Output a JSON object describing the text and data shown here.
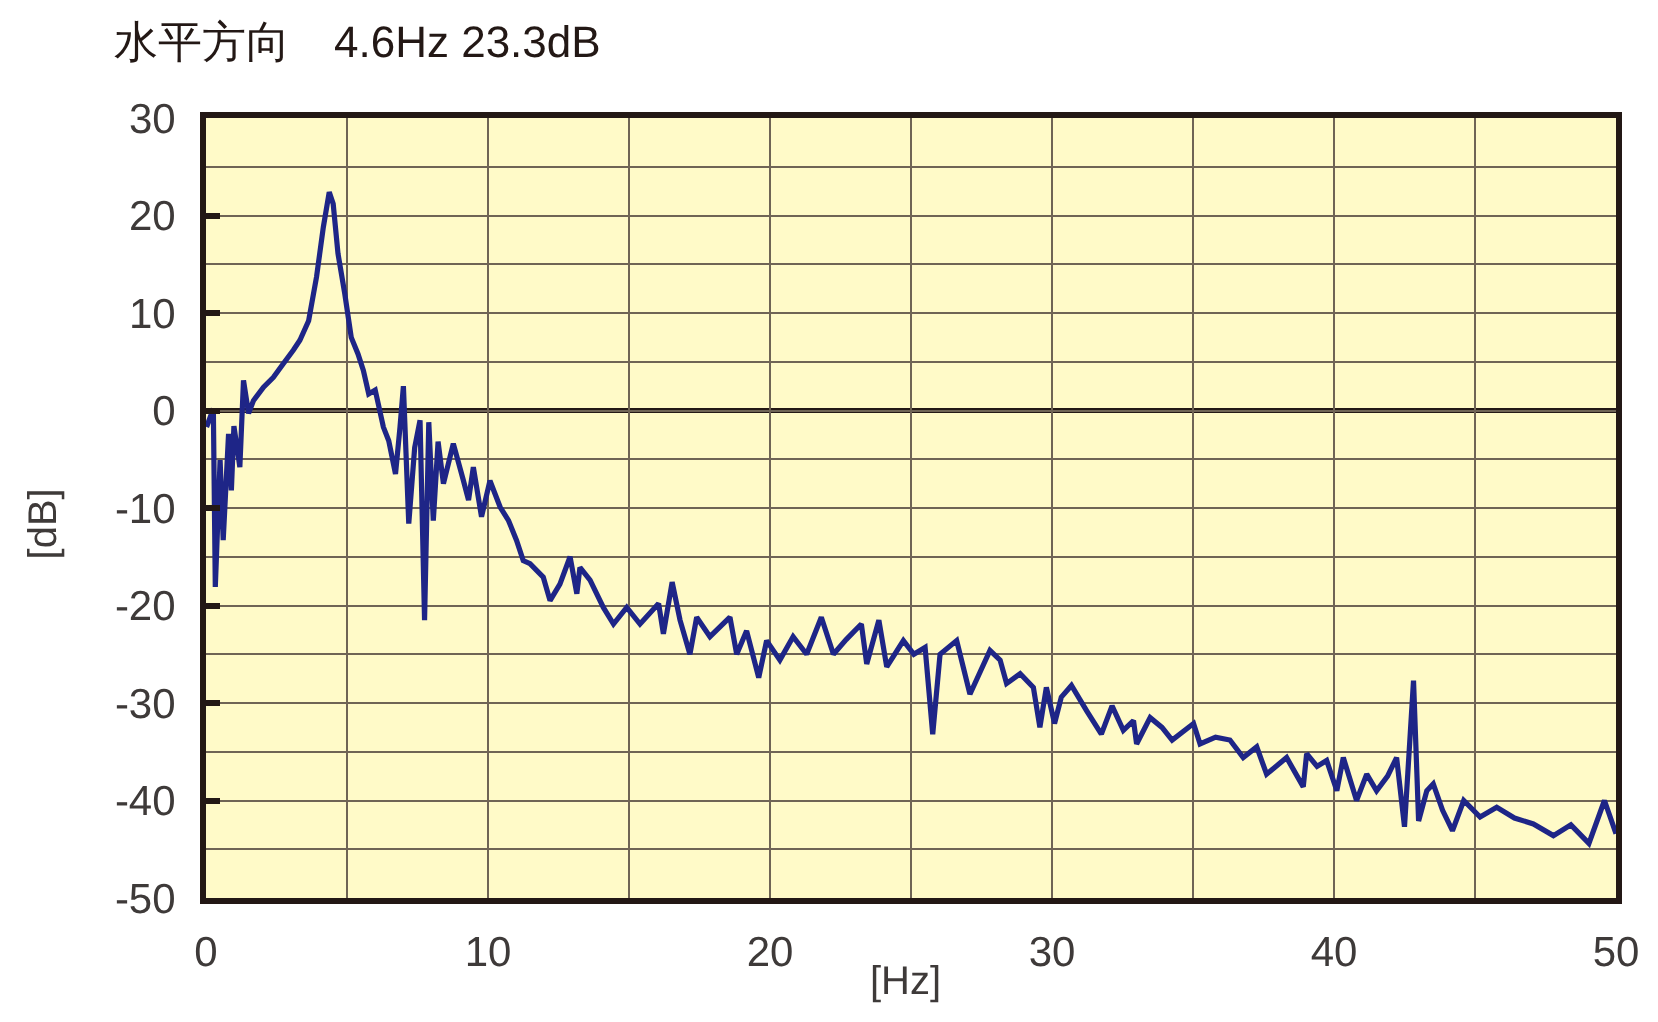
{
  "chart_data": {
    "type": "line",
    "title": "水平方向　4.6Hz 23.3dB",
    "xlabel": "[Hz]",
    "ylabel": "[dB]",
    "xlim": [
      0,
      50
    ],
    "ylim": [
      -50,
      30
    ],
    "xticks": [
      0,
      {
        "value": 5,
        "label": null
      },
      10,
      {
        "value": 15,
        "label": null
      },
      20,
      {
        "value": 25,
        "label": null
      },
      30,
      {
        "value": 35,
        "label": null
      },
      40,
      {
        "value": 45,
        "label": null
      },
      50
    ],
    "yticks": [
      -50,
      {
        "value": -45,
        "label": null
      },
      -40,
      {
        "value": -35,
        "label": null
      },
      -30,
      {
        "value": -25,
        "label": null
      },
      -20,
      {
        "value": -15,
        "label": null
      },
      -10,
      {
        "value": -5,
        "label": null
      },
      0,
      {
        "value": 5,
        "label": null
      },
      10,
      {
        "value": 15,
        "label": null
      },
      20,
      {
        "value": 25,
        "label": null
      },
      30
    ],
    "grid": true,
    "line_style": "solid",
    "ref_lines": [
      {
        "axis": "y",
        "value": 0,
        "color": "#231815"
      }
    ],
    "series": [
      {
        "color": "#1e2587",
        "x": [
          0.02,
          0.26,
          0.33,
          0.5,
          0.61,
          0.8,
          0.9,
          0.99,
          1.2,
          1.33,
          1.51,
          1.68,
          2.04,
          2.39,
          2.74,
          3.1,
          3.33,
          3.64,
          3.92,
          4.16,
          4.37,
          4.51,
          4.68,
          4.92,
          5.15,
          5.39,
          5.58,
          5.77,
          6.0,
          6.29,
          6.48,
          6.72,
          6.88,
          7.0,
          7.19,
          7.4,
          7.59,
          7.75,
          7.9,
          8.06,
          8.23,
          8.42,
          8.77,
          9.13,
          9.31,
          9.48,
          9.77,
          10.07,
          10.43,
          10.73,
          11.01,
          11.25,
          11.49,
          11.96,
          12.2,
          12.55,
          12.91,
          13.15,
          13.26,
          13.62,
          14.09,
          14.45,
          14.92,
          15.39,
          16.05,
          16.22,
          16.53,
          16.81,
          17.16,
          17.4,
          17.87,
          18.58,
          18.82,
          19.17,
          19.6,
          19.88,
          20.35,
          20.82,
          21.3,
          21.82,
          22.25,
          22.7,
          23.24,
          23.43,
          23.86,
          24.14,
          24.73,
          25.1,
          25.5,
          25.77,
          26.03,
          26.62,
          27.09,
          27.8,
          28.16,
          28.39,
          28.87,
          29.34,
          29.57,
          29.8,
          30.09,
          30.33,
          30.69,
          31.23,
          31.75,
          32.13,
          32.53,
          32.89,
          33.0,
          33.48,
          33.9,
          34.26,
          35.02,
          35.25,
          35.8,
          36.31,
          36.78,
          37.26,
          37.61,
          38.32,
          38.91,
          39.03,
          39.4,
          39.74,
          40.1,
          40.33,
          40.8,
          41.16,
          41.51,
          41.9,
          42.22,
          42.5,
          42.82,
          43.0,
          43.29,
          43.52,
          43.85,
          44.2,
          44.6,
          45.18,
          45.77,
          46.4,
          47.07,
          47.78,
          48.4,
          49.04,
          49.59,
          50.0
        ],
        "values": [
          -1.7,
          0.2,
          -18.1,
          -5.1,
          -13.3,
          -2.4,
          -8.2,
          -1.6,
          -5.8,
          3.1,
          -0.3,
          1.0,
          2.4,
          3.4,
          4.8,
          6.2,
          7.2,
          9.2,
          13.7,
          18.8,
          22.4,
          21.2,
          16.1,
          12.0,
          7.5,
          5.8,
          4.1,
          1.7,
          2.1,
          -1.7,
          -3.1,
          -6.5,
          -1.7,
          2.5,
          -11.6,
          -3.8,
          -1.0,
          -21.5,
          -1.2,
          -11.3,
          -3.2,
          -7.5,
          -3.4,
          -7.2,
          -9.2,
          -5.8,
          -10.9,
          -7.2,
          -9.9,
          -11.3,
          -13.3,
          -15.4,
          -15.7,
          -17.1,
          -19.5,
          -17.8,
          -15.0,
          -18.8,
          -16.1,
          -17.4,
          -20.2,
          -21.9,
          -20.2,
          -21.9,
          -19.8,
          -22.9,
          -17.6,
          -21.5,
          -25.0,
          -21.2,
          -23.2,
          -21.2,
          -25.0,
          -22.6,
          -27.4,
          -23.6,
          -25.6,
          -23.2,
          -25.0,
          -21.2,
          -25.0,
          -23.5,
          -21.9,
          -26.0,
          -21.5,
          -26.3,
          -23.6,
          -25.0,
          -24.3,
          -33.2,
          -25.0,
          -23.6,
          -29.1,
          -24.6,
          -25.6,
          -28.0,
          -27.0,
          -28.4,
          -32.5,
          -28.4,
          -32.1,
          -29.4,
          -28.2,
          -30.8,
          -33.2,
          -30.3,
          -32.8,
          -31.8,
          -34.2,
          -31.5,
          -32.5,
          -33.8,
          -32.1,
          -34.2,
          -33.5,
          -33.8,
          -35.6,
          -34.5,
          -37.3,
          -35.6,
          -38.6,
          -35.2,
          -36.5,
          -35.9,
          -39.0,
          -35.6,
          -40.0,
          -37.3,
          -39.0,
          -37.5,
          -35.6,
          -42.7,
          -27.7,
          -42.1,
          -39.0,
          -38.3,
          -41.0,
          -43.1,
          -40.0,
          -41.7,
          -40.7,
          -41.8,
          -42.4,
          -43.6,
          -42.5,
          -44.4,
          -40.0,
          -43.4
        ]
      }
    ]
  }
}
